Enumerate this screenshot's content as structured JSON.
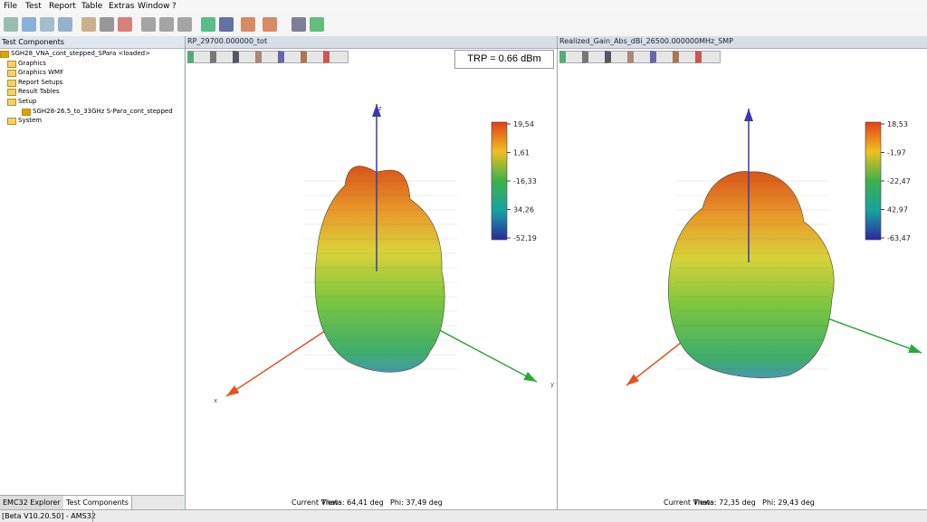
{
  "menu": [
    "File",
    "Test",
    "Report",
    "Table",
    "Extras",
    "Window",
    "?"
  ],
  "left_panel": {
    "title": "Test Components",
    "tree": [
      "SGH28_VNA_cont_stepped_SPara <loaded>",
      "Graphics",
      "Graphics WMF",
      "Report Setups",
      "Result Tables",
      "Setup",
      "SGH28-26.5_to_33GHz S-Para_cont_stepped",
      "System"
    ],
    "tabs": [
      "EMC32 Explorer",
      "Test Components"
    ]
  },
  "status": "[Beta V10.20.50] - AMS32",
  "panels": [
    {
      "title": "RP_29700.000000_tot",
      "badge": "TRP = 0.66 dBm",
      "colorbar": [
        "19,54",
        "1,61",
        "-16,33",
        "34,26",
        "-52,19"
      ],
      "axes": [
        "z",
        "y",
        "x"
      ],
      "footer": [
        "Current View:",
        "Theta: 64,41 deg",
        "Phi: 37,49 deg"
      ]
    },
    {
      "title": "Realized_Gain_Abs_dBi_26500.000000MHz_SMP",
      "colorbar": [
        "18,53",
        "-1,97",
        "-22,47",
        "42,97",
        "-63,47"
      ],
      "footer": [
        "Current View:",
        "Theta: 72,35 deg",
        "Phi: 29,43 deg"
      ]
    }
  ]
}
